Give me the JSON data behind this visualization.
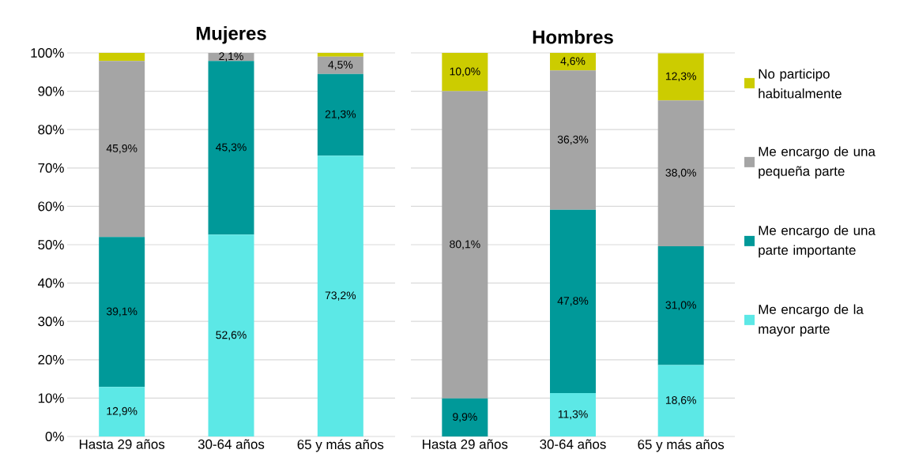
{
  "chart_data": [
    {
      "type": "bar",
      "title": "Mujeres",
      "stacked": true,
      "grid": "y",
      "categories": [
        "Hasta 29 años",
        "30-64 años",
        "65 y más años"
      ],
      "ylim": [
        0,
        100
      ],
      "yticks": [
        {
          "value": 0,
          "label": "0%"
        },
        {
          "value": 10,
          "label": "10%"
        },
        {
          "value": 20,
          "label": "20%"
        },
        {
          "value": 30,
          "label": "30%"
        },
        {
          "value": 40,
          "label": "40%"
        },
        {
          "value": 50,
          "label": "50%"
        },
        {
          "value": 60,
          "label": "60%"
        },
        {
          "value": 70,
          "label": "70%"
        },
        {
          "value": 80,
          "label": "80%"
        },
        {
          "value": 90,
          "label": "90%"
        },
        {
          "value": 100,
          "label": "100%"
        }
      ],
      "series": [
        {
          "color": "#5ce8e6",
          "values": [
            12.9,
            52.6,
            73.2
          ],
          "value_labels": [
            "12,9%",
            "52,6%",
            "73,2%"
          ]
        },
        {
          "color": "#009999",
          "values": [
            39.1,
            45.3,
            21.3
          ],
          "value_labels": [
            "39,1%",
            "45,3%",
            "21,3%"
          ]
        },
        {
          "color": "#a5a5a5",
          "values": [
            45.9,
            2.1,
            4.5
          ],
          "value_labels": [
            "45,9%",
            "2,1%",
            "4,5%"
          ]
        },
        {
          "color": "#cccc00",
          "values": [
            2.1,
            0,
            1.0
          ],
          "value_labels": [
            null,
            null,
            null
          ]
        }
      ]
    },
    {
      "type": "bar",
      "title": "Hombres",
      "stacked": true,
      "grid": "y",
      "tick_labels": "x",
      "legend": "right",
      "categories": [
        "Hasta 29 años",
        "30-64 años",
        "65 y más años"
      ],
      "ylim": [
        0,
        100
      ],
      "yticks": [
        0,
        10,
        20,
        30,
        40,
        50,
        60,
        70,
        80,
        90,
        100
      ],
      "series": [
        {
          "name": "Me encargo de la mayor parte",
          "color": "#5ce8e6",
          "values": [
            0,
            11.3,
            18.6
          ],
          "value_labels": [
            null,
            "11,3%",
            "18,6%"
          ]
        },
        {
          "name": "Me encargo de una parte importante",
          "color": "#009999",
          "values": [
            9.9,
            47.8,
            31.0
          ],
          "value_labels": [
            "9,9%",
            "47,8%",
            "31,0%"
          ]
        },
        {
          "name": "Me encargo de una pequeña parte",
          "color": "#a5a5a5",
          "values": [
            80.1,
            36.3,
            38.0
          ],
          "value_labels": [
            "80,1%",
            "36,3%",
            "38,0%"
          ]
        },
        {
          "name": "No participo habitualmente",
          "color": "#cccc00",
          "values": [
            10.0,
            4.6,
            12.3
          ],
          "value_labels": [
            "10,0%",
            "4,6%",
            "12,3%"
          ]
        }
      ]
    }
  ]
}
